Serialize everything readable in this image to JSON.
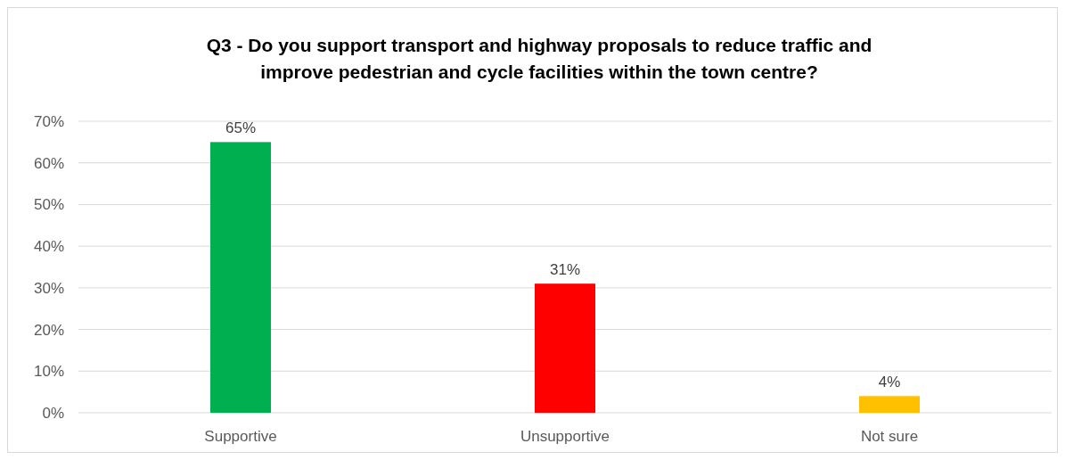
{
  "chart_data": {
    "type": "bar",
    "title": "Q3 - Do you support transport and highway proposals to reduce traffic and\nimprove pedestrian and cycle facilities within the town centre?",
    "categories": [
      "Supportive",
      "Unsupportive",
      "Not sure"
    ],
    "values": [
      65,
      31,
      4
    ],
    "colors": [
      "#00b050",
      "#ff0000",
      "#ffc000"
    ],
    "value_labels": [
      "65%",
      "31%",
      "4%"
    ],
    "ylim": [
      0,
      70
    ],
    "yticks": [
      {
        "value": 0,
        "label": "0%"
      },
      {
        "value": 10,
        "label": "10%"
      },
      {
        "value": 20,
        "label": "20%"
      },
      {
        "value": 30,
        "label": "30%"
      },
      {
        "value": 40,
        "label": "40%"
      },
      {
        "value": 50,
        "label": "50%"
      },
      {
        "value": 60,
        "label": "60%"
      },
      {
        "value": 70,
        "label": "70%"
      }
    ],
    "grid": "y"
  }
}
